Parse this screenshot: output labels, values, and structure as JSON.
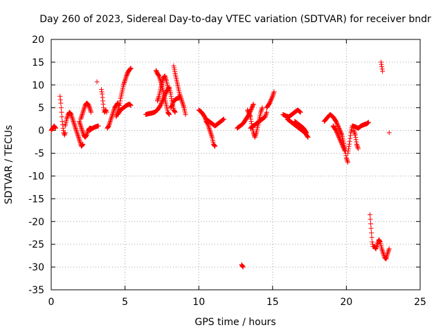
{
  "chart_data": {
    "type": "scatter",
    "title": "Day 260 of 2023, Sidereal Day-to-day VTEC variation (SDTVAR) for receiver bndr",
    "xlabel": "GPS time / hours",
    "ylabel": "SDTVAR / TECUs",
    "xlim": [
      0,
      25
    ],
    "ylim": [
      -35,
      20
    ],
    "xticks": [
      0,
      5,
      10,
      15,
      20,
      25
    ],
    "yticks": [
      20,
      15,
      10,
      5,
      0,
      -5,
      -10,
      -15,
      -20,
      -25,
      -30,
      -35
    ],
    "grid": true,
    "marker": "+",
    "marker_color": "#ff0000",
    "series": [
      {
        "name": "SDTVAR",
        "segments": [
          [
            [
              0.0,
              0.0
            ],
            [
              0.1,
              0.5
            ],
            [
              0.2,
              1.0
            ],
            [
              0.3,
              0.5
            ]
          ],
          [
            [
              0.6,
              7.5
            ],
            [
              0.65,
              6
            ],
            [
              0.7,
              4
            ],
            [
              0.75,
              2
            ],
            [
              0.8,
              0.5
            ],
            [
              0.85,
              -0.5
            ],
            [
              0.9,
              -1.0
            ],
            [
              0.95,
              -0.5
            ]
          ],
          [
            [
              0.95,
              1.0
            ],
            [
              1.05,
              2.5
            ],
            [
              1.15,
              3.5
            ],
            [
              1.25,
              4.0
            ],
            [
              1.35,
              3.5
            ],
            [
              1.45,
              2.5
            ],
            [
              1.55,
              1.5
            ],
            [
              1.65,
              0.5
            ],
            [
              1.75,
              -0.5
            ],
            [
              1.85,
              -1.5
            ],
            [
              1.95,
              -2.5
            ],
            [
              2.05,
              -3.5
            ],
            [
              2.15,
              -3.0
            ]
          ],
          [
            [
              1.9,
              2.0
            ],
            [
              2.0,
              1.0
            ],
            [
              2.1,
              0.0
            ],
            [
              2.2,
              -1.0
            ],
            [
              2.3,
              -1.5
            ],
            [
              2.4,
              -1.0
            ],
            [
              2.5,
              0.0
            ],
            [
              2.6,
              0.5
            ],
            [
              2.7,
              0.5
            ]
          ],
          [
            [
              2.0,
              2.5
            ],
            [
              2.1,
              3.5
            ],
            [
              2.2,
              4.5
            ],
            [
              2.3,
              5.5
            ],
            [
              2.4,
              6.0
            ],
            [
              2.5,
              5.8
            ],
            [
              2.6,
              5.0
            ],
            [
              2.7,
              4.0
            ]
          ],
          [
            [
              2.6,
              0.0
            ],
            [
              2.8,
              0.5
            ],
            [
              3.0,
              0.8
            ],
            [
              3.2,
              1.0
            ]
          ],
          [
            [
              3.1,
              10.7
            ]
          ],
          [
            [
              3.4,
              9.0
            ],
            [
              3.45,
              8.0
            ],
            [
              3.5,
              6.5
            ],
            [
              3.55,
              5.0
            ],
            [
              3.6,
              4.0
            ],
            [
              3.7,
              4.5
            ],
            [
              3.75,
              4.0
            ]
          ],
          [
            [
              3.8,
              0.5
            ],
            [
              3.9,
              1.0
            ],
            [
              4.0,
              2.0
            ],
            [
              4.1,
              3.0
            ],
            [
              4.2,
              4.0
            ],
            [
              4.3,
              5.0
            ],
            [
              4.4,
              5.5
            ],
            [
              4.5,
              6.0
            ],
            [
              4.6,
              5.5
            ]
          ],
          [
            [
              4.4,
              3.0
            ],
            [
              4.5,
              4.0
            ],
            [
              4.6,
              5.0
            ],
            [
              4.7,
              7.0
            ],
            [
              4.8,
              8.5
            ],
            [
              4.9,
              10.0
            ],
            [
              5.0,
              11.0
            ],
            [
              5.1,
              12.0
            ],
            [
              5.2,
              12.8
            ],
            [
              5.3,
              13.3
            ],
            [
              5.4,
              13.7
            ]
          ],
          [
            [
              4.5,
              3.5
            ],
            [
              4.7,
              4.5
            ],
            [
              4.9,
              5.0
            ],
            [
              5.1,
              5.5
            ],
            [
              5.3,
              5.8
            ],
            [
              5.4,
              5.5
            ]
          ],
          [
            [
              6.4,
              3.5
            ],
            [
              6.6,
              3.7
            ],
            [
              6.8,
              3.8
            ],
            [
              7.0,
              4.0
            ],
            [
              7.2,
              4.5
            ],
            [
              7.4,
              5.5
            ],
            [
              7.6,
              7.0
            ],
            [
              7.8,
              8.5
            ],
            [
              8.0,
              9.5
            ],
            [
              8.1,
              8.0
            ],
            [
              8.2,
              6.0
            ],
            [
              8.3,
              4.5
            ],
            [
              8.4,
              4.0
            ]
          ],
          [
            [
              7.1,
              13.2
            ],
            [
              7.2,
              12.5
            ],
            [
              7.3,
              12.0
            ],
            [
              7.4,
              11.0
            ],
            [
              7.5,
              10.0
            ],
            [
              7.6,
              8.5
            ],
            [
              7.7,
              7.0
            ],
            [
              7.8,
              5.5
            ],
            [
              7.9,
              4.0
            ],
            [
              8.0,
              3.5
            ]
          ],
          [
            [
              7.2,
              6.5
            ],
            [
              7.3,
              7.5
            ],
            [
              7.4,
              9.0
            ],
            [
              7.5,
              10.5
            ],
            [
              7.6,
              11.5
            ],
            [
              7.7,
              12.0
            ],
            [
              7.8,
              11.0
            ],
            [
              7.9,
              9.5
            ]
          ],
          [
            [
              8.3,
              14.2
            ],
            [
              8.4,
              12.5
            ],
            [
              8.5,
              11.0
            ],
            [
              8.6,
              9.5
            ],
            [
              8.7,
              8.0
            ],
            [
              8.8,
              7.0
            ],
            [
              8.9,
              6.0
            ],
            [
              9.0,
              5.0
            ],
            [
              9.1,
              3.5
            ]
          ],
          [
            [
              8.1,
              5.0
            ],
            [
              8.2,
              5.5
            ],
            [
              8.3,
              6.5
            ],
            [
              8.5,
              7.0
            ],
            [
              8.7,
              7.2
            ]
          ],
          [
            [
              10.0,
              4.5
            ],
            [
              10.2,
              4.0
            ],
            [
              10.4,
              3.0
            ],
            [
              10.5,
              2.0
            ],
            [
              10.6,
              1.5
            ],
            [
              10.7,
              0.5
            ],
            [
              10.8,
              -0.5
            ],
            [
              10.9,
              -1.5
            ],
            [
              11.0,
              -3.0
            ],
            [
              11.1,
              -3.5
            ]
          ],
          [
            [
              10.5,
              2.5
            ],
            [
              10.7,
              2.0
            ],
            [
              10.9,
              1.5
            ],
            [
              11.1,
              1.0
            ],
            [
              11.3,
              1.5
            ],
            [
              11.5,
              2.0
            ],
            [
              11.7,
              2.5
            ]
          ],
          [
            [
              12.6,
              0.5
            ],
            [
              12.8,
              1.0
            ],
            [
              13.0,
              1.5
            ],
            [
              13.2,
              2.5
            ],
            [
              13.4,
              3.5
            ],
            [
              13.6,
              5.0
            ],
            [
              13.7,
              5.8
            ]
          ],
          [
            [
              12.9,
              -29.5
            ],
            [
              13.0,
              -30.0
            ]
          ],
          [
            [
              13.3,
              4.5
            ],
            [
              13.5,
              3.0
            ],
            [
              13.6,
              1.0
            ],
            [
              13.7,
              -0.5
            ],
            [
              13.8,
              -1.5
            ],
            [
              13.9,
              -0.5
            ],
            [
              14.0,
              1.0
            ],
            [
              14.1,
              2.5
            ],
            [
              14.2,
              4.0
            ],
            [
              14.3,
              5.0
            ]
          ],
          [
            [
              13.5,
              0.5
            ],
            [
              13.7,
              1.0
            ],
            [
              13.9,
              1.5
            ],
            [
              14.1,
              2.0
            ],
            [
              14.3,
              2.5
            ],
            [
              14.5,
              3.0
            ],
            [
              14.6,
              4.0
            ]
          ],
          [
            [
              14.6,
              5.0
            ],
            [
              14.8,
              6.0
            ],
            [
              15.0,
              7.5
            ],
            [
              15.1,
              8.5
            ]
          ],
          [
            [
              15.7,
              3.5
            ],
            [
              15.9,
              3.2
            ],
            [
              16.1,
              3.0
            ],
            [
              16.3,
              3.5
            ],
            [
              16.5,
              4.0
            ],
            [
              16.7,
              4.5
            ],
            [
              16.9,
              4.0
            ]
          ],
          [
            [
              16.0,
              2.5
            ],
            [
              16.2,
              2.0
            ],
            [
              16.4,
              1.5
            ],
            [
              16.6,
              1.0
            ],
            [
              16.8,
              0.5
            ],
            [
              17.0,
              0.0
            ],
            [
              17.2,
              -0.5
            ],
            [
              17.4,
              -1.5
            ]
          ],
          [
            [
              16.5,
              2.0
            ],
            [
              16.7,
              1.5
            ],
            [
              16.9,
              1.0
            ],
            [
              17.1,
              0.5
            ],
            [
              17.3,
              -0.5
            ]
          ],
          [
            [
              18.5,
              2.0
            ],
            [
              18.7,
              2.8
            ],
            [
              18.9,
              3.5
            ],
            [
              19.1,
              3.0
            ],
            [
              19.3,
              2.0
            ],
            [
              19.5,
              0.5
            ],
            [
              19.7,
              -1.0
            ],
            [
              19.8,
              -2.5
            ],
            [
              19.9,
              -4.0
            ],
            [
              20.0,
              -6.0
            ],
            [
              20.1,
              -7.0
            ]
          ],
          [
            [
              19.1,
              1.0
            ],
            [
              19.3,
              0.0
            ],
            [
              19.5,
              -1.5
            ],
            [
              19.7,
              -3.0
            ],
            [
              19.9,
              -4.5
            ]
          ],
          [
            [
              20.1,
              -5.0
            ],
            [
              20.2,
              -3.0
            ],
            [
              20.3,
              -0.5
            ],
            [
              20.4,
              1.0
            ],
            [
              20.6,
              0.8
            ],
            [
              20.8,
              0.5
            ],
            [
              21.0,
              1.0
            ],
            [
              21.2,
              1.3
            ],
            [
              21.4,
              1.5
            ],
            [
              21.5,
              1.8
            ]
          ],
          [
            [
              20.5,
              0.0
            ],
            [
              20.6,
              -1.0
            ],
            [
              20.7,
              -3.0
            ],
            [
              20.8,
              -4.0
            ]
          ],
          [
            [
              21.6,
              -18.5
            ],
            [
              21.65,
              -20.5
            ],
            [
              21.7,
              -22.5
            ],
            [
              21.75,
              -24.5
            ],
            [
              21.8,
              -25.5
            ],
            [
              21.9,
              -25.5
            ],
            [
              22.0,
              -26.0
            ],
            [
              22.1,
              -25.0
            ],
            [
              22.2,
              -24.0
            ],
            [
              22.3,
              -24.5
            ],
            [
              22.4,
              -26.0
            ],
            [
              22.5,
              -27.0
            ],
            [
              22.6,
              -28.0
            ],
            [
              22.7,
              -28.2
            ],
            [
              22.8,
              -27.0
            ],
            [
              22.9,
              -26.0
            ]
          ],
          [
            [
              22.35,
              15.0
            ],
            [
              22.4,
              14.0
            ],
            [
              22.45,
              13.0
            ]
          ],
          [
            [
              22.9,
              -0.5
            ]
          ]
        ]
      }
    ]
  }
}
